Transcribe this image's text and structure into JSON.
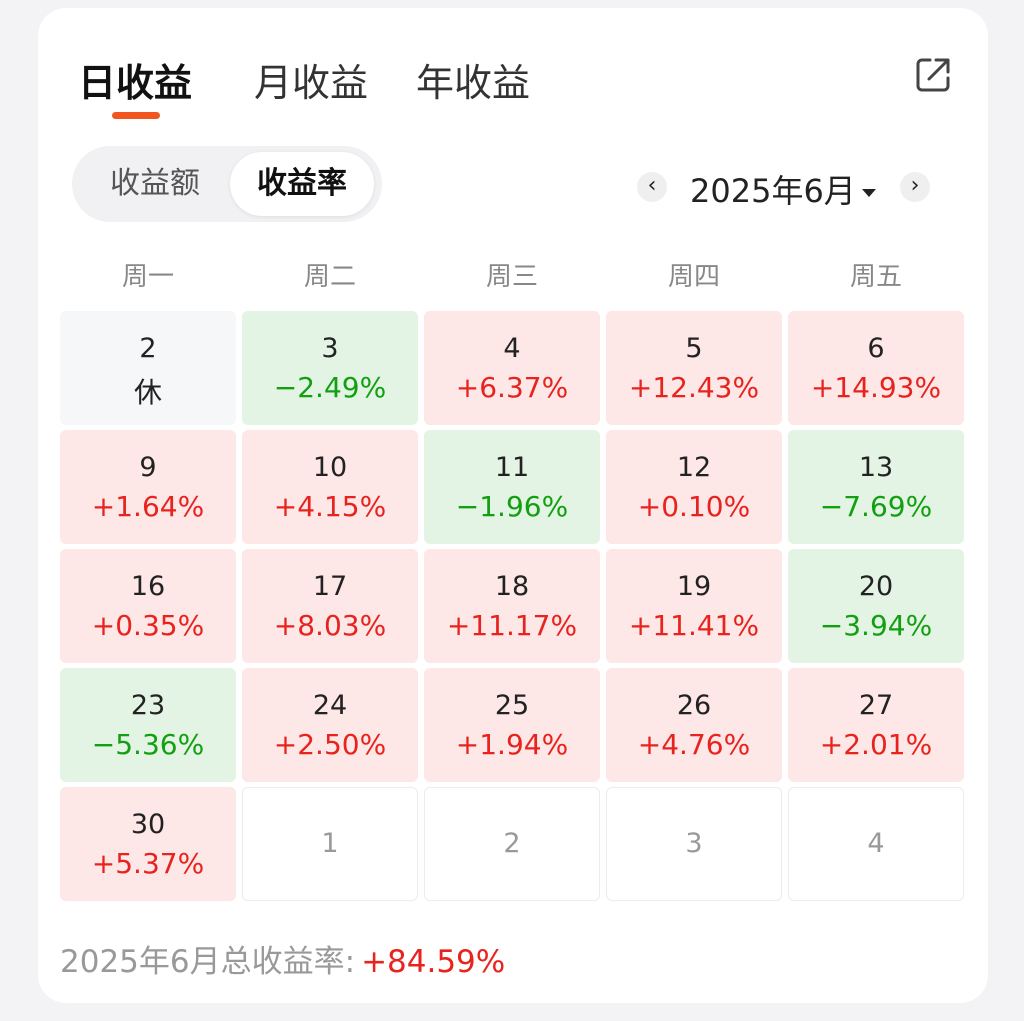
{
  "tabs": [
    {
      "label": "日收益",
      "active": true
    },
    {
      "label": "月收益",
      "active": false
    },
    {
      "label": "年收益",
      "active": false
    }
  ],
  "share_icon": "share-icon",
  "segment": {
    "amount_label": "收益额",
    "rate_label": "收益率",
    "selected": "收益率"
  },
  "month_selector": {
    "label": "2025年6月",
    "prev": "‹",
    "next": "›"
  },
  "weekdays": [
    "周一",
    "周二",
    "周三",
    "周四",
    "周五"
  ],
  "calendar": [
    [
      {
        "day": "2",
        "value": "休",
        "type": "rest"
      },
      {
        "day": "3",
        "value": "−2.49%",
        "type": "green"
      },
      {
        "day": "4",
        "value": "+6.37%",
        "type": "red"
      },
      {
        "day": "5",
        "value": "+12.43%",
        "type": "red"
      },
      {
        "day": "6",
        "value": "+14.93%",
        "type": "red"
      }
    ],
    [
      {
        "day": "9",
        "value": "+1.64%",
        "type": "red"
      },
      {
        "day": "10",
        "value": "+4.15%",
        "type": "red"
      },
      {
        "day": "11",
        "value": "−1.96%",
        "type": "green"
      },
      {
        "day": "12",
        "value": "+0.10%",
        "type": "red"
      },
      {
        "day": "13",
        "value": "−7.69%",
        "type": "green"
      }
    ],
    [
      {
        "day": "16",
        "value": "+0.35%",
        "type": "red"
      },
      {
        "day": "17",
        "value": "+8.03%",
        "type": "red"
      },
      {
        "day": "18",
        "value": "+11.17%",
        "type": "red"
      },
      {
        "day": "19",
        "value": "+11.41%",
        "type": "red"
      },
      {
        "day": "20",
        "value": "−3.94%",
        "type": "green"
      }
    ],
    [
      {
        "day": "23",
        "value": "−5.36%",
        "type": "green"
      },
      {
        "day": "24",
        "value": "+2.50%",
        "type": "red"
      },
      {
        "day": "25",
        "value": "+1.94%",
        "type": "red"
      },
      {
        "day": "26",
        "value": "+4.76%",
        "type": "red"
      },
      {
        "day": "27",
        "value": "+2.01%",
        "type": "red"
      }
    ],
    [
      {
        "day": "30",
        "value": "+5.37%",
        "type": "red"
      },
      {
        "day": "1",
        "value": "",
        "type": "empty"
      },
      {
        "day": "2",
        "value": "",
        "type": "empty"
      },
      {
        "day": "3",
        "value": "",
        "type": "empty"
      },
      {
        "day": "4",
        "value": "",
        "type": "empty"
      }
    ]
  ],
  "summary": {
    "label": "2025年6月总收益率:",
    "value": "+84.59%"
  },
  "colors": {
    "accent": "#f0561e",
    "gain": "#e8231e",
    "loss": "#12a012",
    "gain_bg": "#fde7e7",
    "loss_bg": "#e4f4e4"
  }
}
